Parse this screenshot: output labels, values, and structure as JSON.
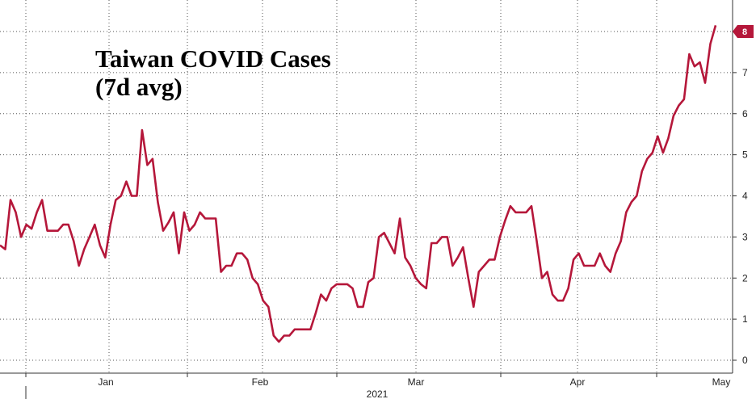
{
  "chart_data": {
    "type": "line",
    "title_lines": [
      "Taiwan COVID Cases",
      "(7d avg)"
    ],
    "xlabel": "2021",
    "ylabel": "",
    "x_tick_labels": [
      "Jan",
      "Feb",
      "Mar",
      "Apr",
      "May"
    ],
    "y_ticks": [
      0,
      1,
      2,
      3,
      4,
      5,
      6,
      7,
      8
    ],
    "ylim": [
      -0.3,
      8.6
    ],
    "grid": true,
    "last_value_badge": "8",
    "series": [
      {
        "color": "#b5173a",
        "values": [
          2.8,
          2.7,
          3.9,
          3.6,
          3.0,
          3.3,
          3.2,
          3.6,
          3.9,
          3.15,
          3.15,
          3.15,
          3.3,
          3.3,
          2.9,
          2.3,
          2.7,
          3.0,
          3.3,
          2.8,
          2.5,
          3.3,
          3.9,
          4.0,
          4.35,
          4.0,
          4.0,
          5.6,
          4.75,
          4.9,
          3.85,
          3.15,
          3.35,
          3.6,
          2.6,
          3.6,
          3.15,
          3.3,
          3.6,
          3.45,
          3.45,
          3.45,
          2.15,
          2.3,
          2.3,
          2.6,
          2.6,
          2.45,
          2.0,
          1.85,
          1.45,
          1.3,
          0.6,
          0.45,
          0.6,
          0.6,
          0.75,
          0.75,
          0.75,
          0.75,
          1.15,
          1.6,
          1.45,
          1.75,
          1.85,
          1.85,
          1.85,
          1.75,
          1.3,
          1.3,
          1.9,
          2.0,
          3.0,
          3.1,
          2.85,
          2.6,
          3.45,
          2.5,
          2.3,
          2.0,
          1.85,
          1.75,
          2.85,
          2.85,
          3.0,
          3.0,
          2.3,
          2.5,
          2.75,
          2.0,
          1.3,
          2.15,
          2.3,
          2.45,
          2.45,
          3.0,
          3.4,
          3.75,
          3.6,
          3.6,
          3.6,
          3.75,
          2.9,
          2.0,
          2.15,
          1.6,
          1.45,
          1.45,
          1.75,
          2.45,
          2.6,
          2.3,
          2.3,
          2.3,
          2.6,
          2.3,
          2.15,
          2.6,
          2.9,
          3.6,
          3.85,
          4.0,
          4.6,
          4.9,
          5.05,
          5.45,
          5.05,
          5.4,
          5.95,
          6.2,
          6.35,
          7.45,
          7.15,
          7.25,
          6.75,
          7.7,
          8.15
        ]
      }
    ]
  }
}
